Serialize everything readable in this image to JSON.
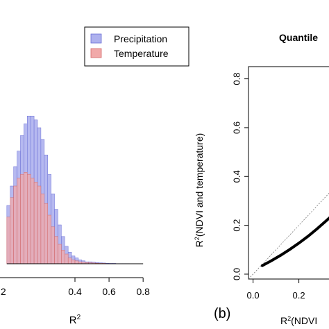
{
  "chart_data": [
    {
      "type": "bar",
      "subtype": "overlapping-histogram",
      "title": "",
      "xlabel_base": "R",
      "xlabel_sup": "2",
      "ylabel": "",
      "xlim": [
        -0.04,
        0.95
      ],
      "ylim": [
        0,
        1
      ],
      "x_ticks": [
        "0.4",
        "0.6",
        "0.8"
      ],
      "x_tick_values": [
        0.4,
        0.6,
        0.8
      ],
      "x_tick_partial": ".2",
      "bin_width": 0.02,
      "bins_start": 0.0,
      "legend": {
        "position": "top-right",
        "entries": [
          {
            "label": "Precipitation",
            "color": "#aeb1ee",
            "border": "#6a6fd6"
          },
          {
            "label": "Temperature",
            "color": "#f1a9a9",
            "border": "#d46a6a"
          }
        ]
      },
      "series": [
        {
          "name": "Precipitation",
          "color": "#aeb1ee",
          "values": [
            0.3,
            0.4,
            0.5,
            0.58,
            0.66,
            0.72,
            0.76,
            0.76,
            0.74,
            0.7,
            0.64,
            0.56,
            0.46,
            0.36,
            0.28,
            0.2,
            0.14,
            0.09,
            0.06,
            0.04,
            0.03,
            0.02,
            0.015,
            0.01,
            0.01,
            0.008,
            0.006,
            0.005,
            0.004,
            0.003,
            0.002,
            0.002,
            0.001,
            0.001,
            0.001,
            0.001,
            0.0,
            0.0,
            0.0,
            0.0
          ]
        },
        {
          "name": "Temperature",
          "color": "#f1a9a9",
          "values": [
            0.24,
            0.34,
            0.4,
            0.44,
            0.46,
            0.47,
            0.46,
            0.44,
            0.42,
            0.4,
            0.36,
            0.31,
            0.25,
            0.19,
            0.14,
            0.1,
            0.07,
            0.05,
            0.03,
            0.02,
            0.015,
            0.01,
            0.008,
            0.006,
            0.005,
            0.004,
            0.003,
            0.002,
            0.002,
            0.001,
            0.001,
            0.001,
            0.0,
            0.0,
            0.0,
            0.0,
            0.0,
            0.0,
            0.0,
            0.0
          ]
        }
      ]
    },
    {
      "type": "line",
      "subtype": "quantile-quantile",
      "title": "Quantile",
      "panel_label": "(b)",
      "xlabel_base": "R",
      "xlabel_sup": "2",
      "xlabel_rest": "(NDVI",
      "ylabel_base": "R",
      "ylabel_sup": "2",
      "ylabel_rest": "(NDVI and temperature)",
      "xlim": [
        -0.02,
        0.38
      ],
      "ylim": [
        -0.02,
        0.85
      ],
      "x_ticks": [
        "0.0",
        "0.2"
      ],
      "x_tick_values": [
        0.0,
        0.2
      ],
      "y_ticks": [
        "0.0",
        "0.2",
        "0.4",
        "0.6",
        "0.8"
      ],
      "y_tick_values": [
        0.0,
        0.2,
        0.4,
        0.6,
        0.8
      ],
      "reference_line": "dotted 1:1",
      "series": [
        {
          "name": "",
          "x": [
            0.04,
            0.08,
            0.12,
            0.16,
            0.2,
            0.24,
            0.28,
            0.32,
            0.36,
            0.4
          ],
          "y": [
            0.035,
            0.055,
            0.077,
            0.101,
            0.127,
            0.155,
            0.186,
            0.219,
            0.253,
            0.29
          ]
        }
      ]
    }
  ]
}
